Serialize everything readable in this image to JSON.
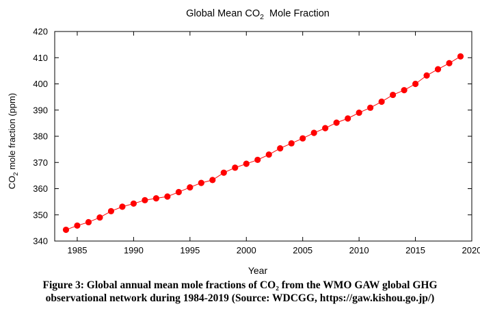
{
  "chart_data": {
    "type": "line",
    "title": "Global Mean CO2  Mole Fraction",
    "title_parts": {
      "pre": "Global Mean CO",
      "sub": "2",
      "post": "  Mole Fraction"
    },
    "xlabel": "Year",
    "ylabel": "CO2 mole fraction (ppm)",
    "ylabel_parts": {
      "pre": "CO",
      "sub": "2",
      "post": " mole fraction (ppm)"
    },
    "xlim": [
      1983,
      2020
    ],
    "ylim": [
      340,
      420
    ],
    "xticks": [
      1985,
      1990,
      1995,
      2000,
      2005,
      2010,
      2015,
      2020
    ],
    "yticks": [
      340,
      350,
      360,
      370,
      380,
      390,
      400,
      410,
      420
    ],
    "grid": false,
    "legend": "none",
    "series": [
      {
        "color": "#ff0000",
        "marker": "circle",
        "x": [
          1984,
          1985,
          1986,
          1987,
          1988,
          1989,
          1990,
          1991,
          1992,
          1993,
          1994,
          1995,
          1996,
          1997,
          1998,
          1999,
          2000,
          2001,
          2002,
          2003,
          2004,
          2005,
          2006,
          2007,
          2008,
          2009,
          2010,
          2011,
          2012,
          2013,
          2014,
          2015,
          2016,
          2017,
          2018,
          2019
        ],
        "y": [
          344.3,
          345.9,
          347.2,
          349.0,
          351.4,
          353.1,
          354.3,
          355.6,
          356.3,
          357.0,
          358.7,
          360.5,
          362.2,
          363.3,
          366.1,
          368.0,
          369.5,
          371.0,
          373.0,
          375.4,
          377.3,
          379.2,
          381.3,
          383.1,
          385.2,
          386.8,
          389.0,
          390.9,
          393.2,
          395.8,
          397.6,
          400.0,
          403.2,
          405.6,
          407.9,
          410.5
        ]
      }
    ]
  },
  "caption": {
    "line1": "Figure 3: Global annual mean mole fractions of CO₂ from the WMO GAW global GHG",
    "line2": "observational network during 1984-2019 (Source: WDCGG, https://gaw.kishou.go.jp/)"
  }
}
